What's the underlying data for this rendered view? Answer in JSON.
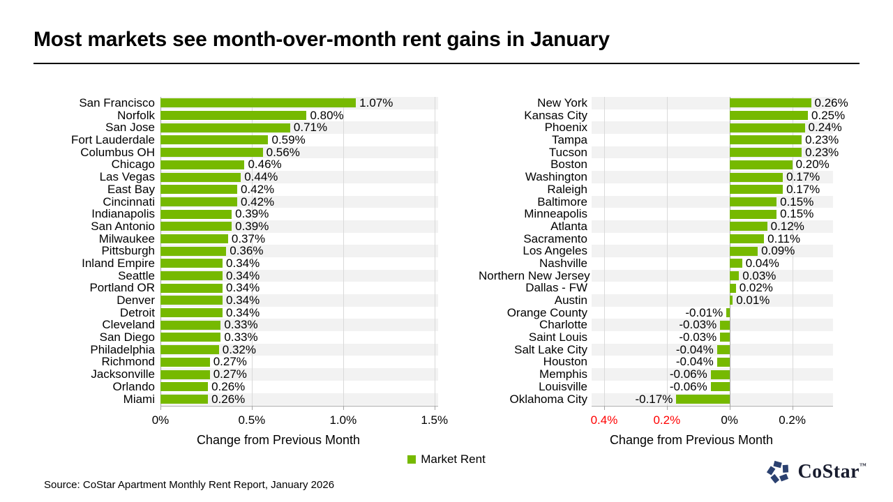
{
  "header": {
    "title": "Most markets see month-over-month rent gains in January"
  },
  "footer": {
    "source": "Source: CoStar Apartment Monthly Rent Report, January 2026"
  },
  "legend": {
    "label": "Market Rent"
  },
  "logo": {
    "name": "CoStar",
    "trademark": "™"
  },
  "colors": {
    "bar_green": "#76B900",
    "row_stripe": "#F2F2F2",
    "gridline": "#D9D9D9",
    "axis_line": "#A6A6A6",
    "negative_tick_red": "#FF0000",
    "tick_black": "#000000",
    "logo_navy": "#2B4170"
  },
  "chart_data": [
    {
      "type": "bar",
      "orientation": "horizontal",
      "series_name": "Market Rent",
      "xlabel": "Change from Previous Month",
      "xlim": [
        0,
        1.52
      ],
      "categories": [
        "San Francisco",
        "Norfolk",
        "San Jose",
        "Fort Lauderdale",
        "Columbus OH",
        "Chicago",
        "Las Vegas",
        "East Bay",
        "Cincinnati",
        "Indianapolis",
        "San Antonio",
        "Milwaukee",
        "Pittsburgh",
        "Inland Empire",
        "Seattle",
        "Portland OR",
        "Denver",
        "Detroit",
        "Cleveland",
        "San Diego",
        "Philadelphia",
        "Richmond",
        "Jacksonville",
        "Orlando",
        "Miami"
      ],
      "values": [
        1.07,
        0.8,
        0.71,
        0.59,
        0.56,
        0.46,
        0.44,
        0.42,
        0.42,
        0.39,
        0.39,
        0.37,
        0.36,
        0.34,
        0.34,
        0.34,
        0.34,
        0.34,
        0.33,
        0.33,
        0.32,
        0.27,
        0.27,
        0.26,
        0.26
      ],
      "value_labels": [
        "1.07%",
        "0.80%",
        "0.71%",
        "0.59%",
        "0.56%",
        "0.46%",
        "0.44%",
        "0.42%",
        "0.42%",
        "0.39%",
        "0.39%",
        "0.37%",
        "0.36%",
        "0.34%",
        "0.34%",
        "0.34%",
        "0.34%",
        "0.34%",
        "0.33%",
        "0.33%",
        "0.32%",
        "0.27%",
        "0.27%",
        "0.26%",
        "0.26%"
      ],
      "ticks": [
        {
          "value": 0,
          "label": "0%",
          "color": "#000000"
        },
        {
          "value": 0.5,
          "label": "0.5%",
          "color": "#000000"
        },
        {
          "value": 1.0,
          "label": "1.0%",
          "color": "#000000"
        },
        {
          "value": 1.5,
          "label": "1.5%",
          "color": "#000000"
        }
      ],
      "gridlines": [
        0.5,
        1.0,
        1.5
      ],
      "zero_line": true,
      "grid": true
    },
    {
      "type": "bar",
      "orientation": "horizontal",
      "series_name": "Market Rent",
      "xlabel": "Change from Previous Month",
      "xlim": [
        -0.44,
        0.33
      ],
      "categories": [
        "New York",
        "Kansas City",
        "Phoenix",
        "Tampa",
        "Tucson",
        "Boston",
        "Washington",
        "Raleigh",
        "Baltimore",
        "Minneapolis",
        "Atlanta",
        "Sacramento",
        "Los Angeles",
        "Nashville",
        "Northern New Jersey",
        "Dallas - FW",
        "Austin",
        "Orange County",
        "Charlotte",
        "Saint Louis",
        "Salt Lake City",
        "Houston",
        "Memphis",
        "Louisville",
        "Oklahoma City"
      ],
      "values": [
        0.26,
        0.25,
        0.24,
        0.23,
        0.23,
        0.2,
        0.17,
        0.17,
        0.15,
        0.15,
        0.12,
        0.11,
        0.09,
        0.04,
        0.03,
        0.02,
        0.01,
        -0.01,
        -0.03,
        -0.03,
        -0.04,
        -0.04,
        -0.06,
        -0.06,
        -0.17
      ],
      "value_labels": [
        "0.26%",
        "0.25%",
        "0.24%",
        "0.23%",
        "0.23%",
        "0.20%",
        "0.17%",
        "0.17%",
        "0.15%",
        "0.15%",
        "0.12%",
        "0.11%",
        "0.09%",
        "0.04%",
        "0.03%",
        "0.02%",
        "0.01%",
        "-0.01%",
        "-0.03%",
        "-0.03%",
        "-0.04%",
        "-0.04%",
        "-0.06%",
        "-0.06%",
        "-0.17%"
      ],
      "ticks": [
        {
          "value": -0.4,
          "label": "0.4%",
          "color": "#FF0000"
        },
        {
          "value": -0.2,
          "label": "0.2%",
          "color": "#FF0000"
        },
        {
          "value": 0,
          "label": "0%",
          "color": "#000000"
        },
        {
          "value": 0.2,
          "label": "0.2%",
          "color": "#000000"
        }
      ],
      "gridlines": [
        -0.4,
        -0.2,
        0.2
      ],
      "zero_line": true,
      "grid": true
    }
  ]
}
